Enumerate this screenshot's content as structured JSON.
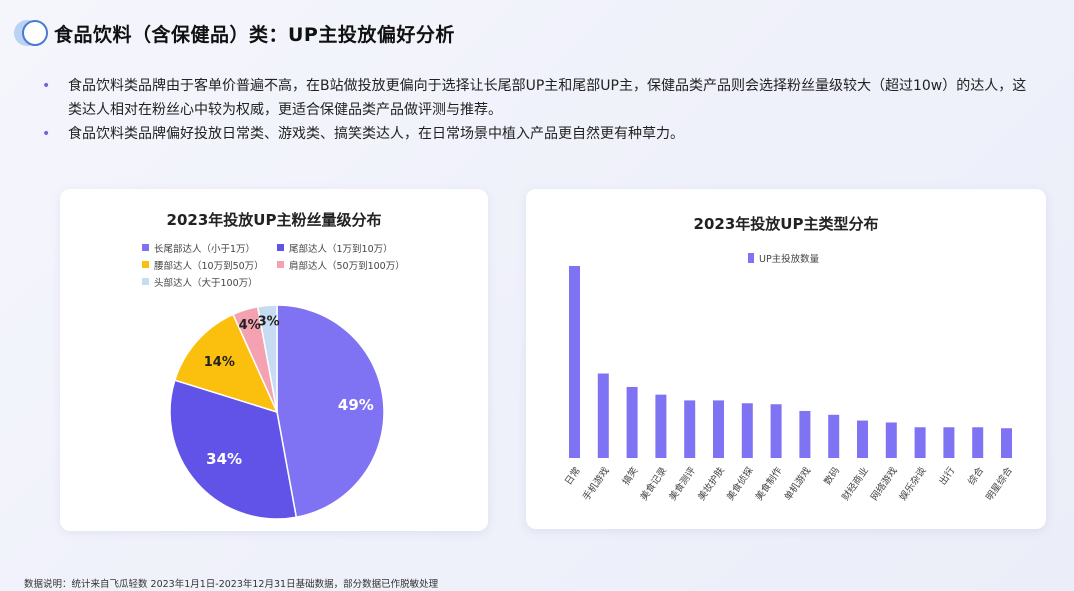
{
  "header": {
    "title": "食品饮料（含保健品）类：UP主投放偏好分析"
  },
  "bullets": [
    "食品饮料类品牌由于客单价普遍不高，在B站做投放更偏向于选择让长尾部UP主和尾部UP主，保健品类产品则会选择粉丝量级较大（超过10w）的达人，这类达人相对在粉丝心中较为权威，更适合保健品类产品做评测与推荐。",
    "食品饮料类品牌偏好投放日常类、游戏类、搞笑类达人，在日常场景中植入产品更自然更有种草力。"
  ],
  "footnote": "数据说明：统计来自飞瓜轻数 2023年1月1日-2023年12月31日基础数据，部分数据已作脱敏处理",
  "chart_data": [
    {
      "type": "pie",
      "title": "2023年投放UP主粉丝量级分布",
      "legend_position": "top",
      "slices": [
        {
          "label": "长尾部达人（小于1万）",
          "value": 49,
          "value_label": "49%",
          "color": "#7f72f3"
        },
        {
          "label": "尾部达人（1万到10万）",
          "value": 34,
          "value_label": "34%",
          "color": "#6153e8"
        },
        {
          "label": "腰部达人（10万到50万）",
          "value": 14,
          "value_label": "14%",
          "color": "#fbbf0d"
        },
        {
          "label": "肩部达人（50万到100万）",
          "value": 4,
          "value_label": "4%",
          "color": "#f4a1b2"
        },
        {
          "label": "头部达人（大于100万）",
          "value": 3,
          "value_label": "3%",
          "color": "#c6dcf2"
        }
      ]
    },
    {
      "type": "bar",
      "title": "2023年投放UP主类型分布",
      "legend_position": "top",
      "series": [
        {
          "name": "UP主投放数量",
          "color": "#7f72f3"
        }
      ],
      "categories": [
        "日常",
        "手机游戏",
        "搞笑",
        "美食记录",
        "美食测评",
        "美妆护肤",
        "美食侦探",
        "美食制作",
        "单机游戏",
        "数码",
        "财经商业",
        "网络游戏",
        "娱乐杂谈",
        "出行",
        "综合",
        "明星综合"
      ],
      "values": [
        100,
        44,
        37,
        33,
        30,
        30,
        28.5,
        28,
        24.5,
        22.5,
        19.5,
        18.5,
        16,
        16,
        16,
        15.5
      ],
      "ylim": [
        0,
        100
      ],
      "grid": false,
      "y_axis_labels_shown": false
    }
  ]
}
